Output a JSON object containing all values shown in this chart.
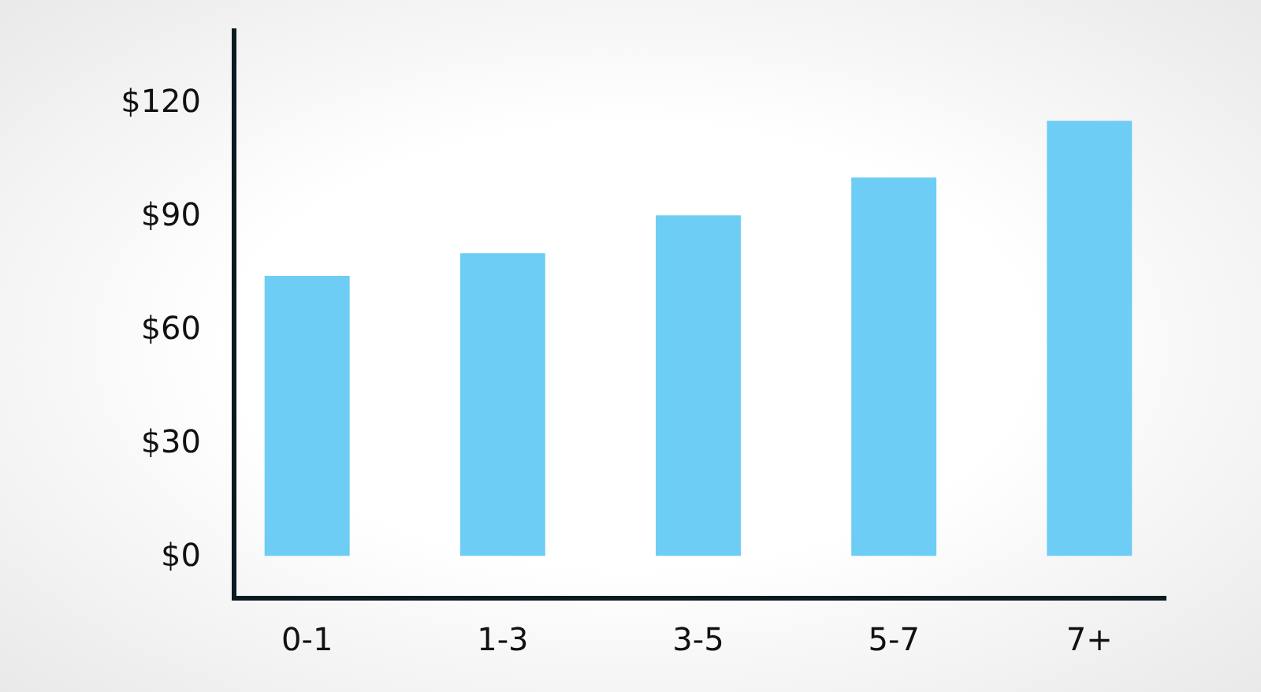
{
  "chart_data": {
    "type": "bar",
    "categories": [
      "0-1",
      "1-3",
      "3-5",
      "5-7",
      "7+"
    ],
    "values": [
      74,
      80,
      90,
      100,
      115
    ],
    "color": "#6dcdf4",
    "ylim": [
      -11,
      139
    ],
    "yticks": [
      {
        "value": 0,
        "label": "$0"
      },
      {
        "value": 30,
        "label": "$30"
      },
      {
        "value": 60,
        "label": "$60"
      },
      {
        "value": 90,
        "label": "$90"
      },
      {
        "value": 120,
        "label": "$120"
      }
    ]
  }
}
